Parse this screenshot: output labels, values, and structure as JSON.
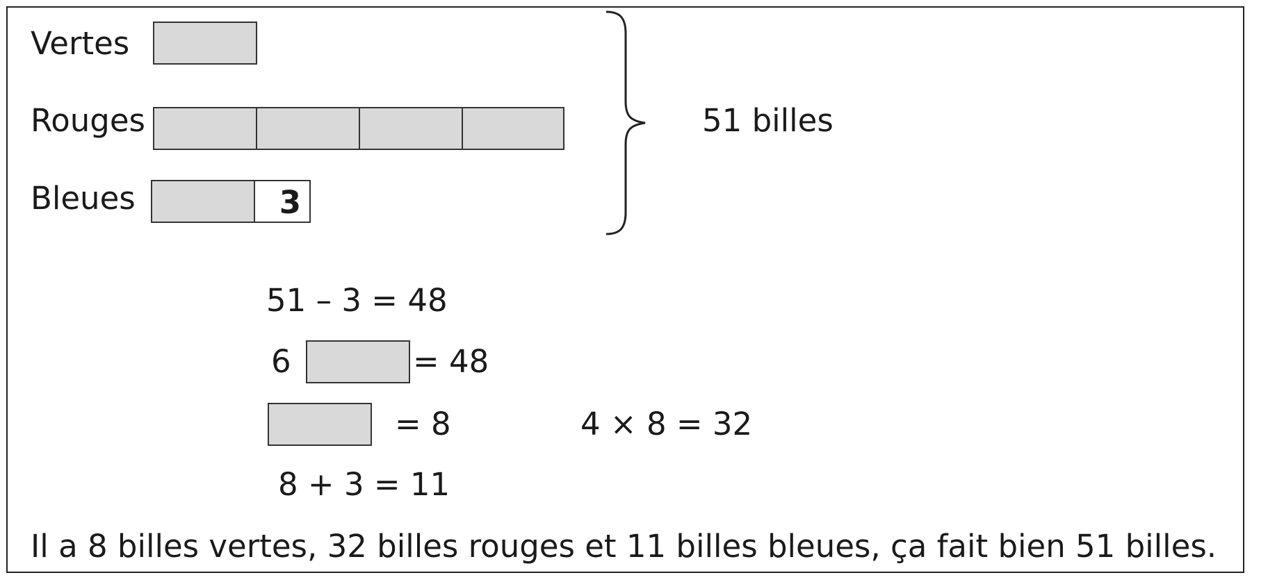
{
  "rows": {
    "vertes": "Vertes",
    "rouges": "Rouges",
    "bleues": "Bleues"
  },
  "bleues_extra": "3",
  "total": "51 billes",
  "equations": {
    "eq1": "51 – 3 = 48",
    "eq2_coef": "6",
    "eq2_rhs": "= 48",
    "eq3_rhs": "= 8",
    "eq4": "4 × 8 = 32",
    "eq5": "8 + 3 = 11"
  },
  "conclusion": "Il a 8 billes vertes, 32 billes rouges et 11 billes bleues, ça fait bien 51 billes."
}
